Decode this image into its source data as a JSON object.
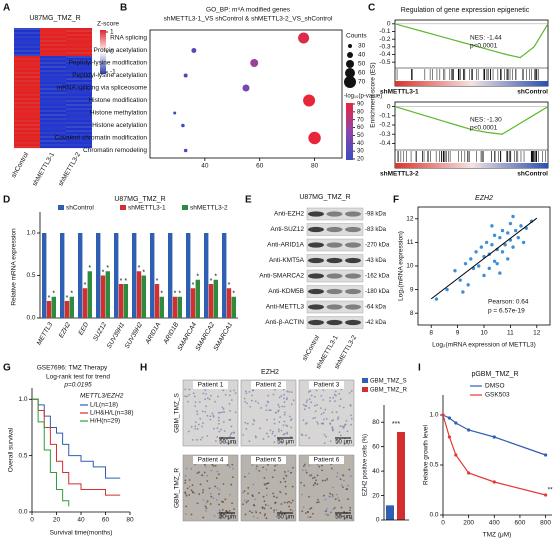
{
  "panel_labels": [
    "A",
    "B",
    "C",
    "D",
    "E",
    "F",
    "G",
    "H",
    "I"
  ],
  "a": {
    "title": "U87MG_TMZ_R",
    "legend_title": "Z-score",
    "legend_ticks": [
      1,
      0,
      -1
    ],
    "columns": [
      "shControl",
      "shMETTL3-1",
      "shMETTL3-2"
    ]
  },
  "b": {
    "title": "GO_BP: m⁶A modified genes",
    "subtitle": "shMETTL3-1_VS shControl & shMETTL3-2_VS_shControl",
    "categories": [
      "RNA splicing",
      "Protein acetylation",
      "Peptidyl-lysine modification",
      "Peptidyl-lysine acetylation",
      "mRNA splicing via spliceosome",
      "Histone modification",
      "Histone methylation",
      "Histone acetylation",
      "Covalent chromatin modification",
      "Chromatin remodeling"
    ],
    "x": [
      76,
      36,
      58,
      33,
      55,
      78,
      29,
      32,
      80,
      33
    ],
    "counts": [
      65,
      35,
      50,
      30,
      45,
      70,
      25,
      28,
      72,
      28
    ],
    "neglog_p": [
      85,
      30,
      60,
      25,
      45,
      90,
      20,
      22,
      90,
      25
    ],
    "xlim": [
      20,
      90
    ],
    "xticks": [
      40,
      60,
      80
    ],
    "size_title": "Counts",
    "size_ticks": [
      30,
      40,
      50,
      60,
      70
    ],
    "color_title": "-log₁₀(p-value)",
    "color_ticks": [
      90,
      80,
      70,
      60,
      50,
      40,
      30,
      20
    ]
  },
  "c": {
    "title": "Regulation of gene  expression epigenetic",
    "ylabel": "Enrichment score (ES)",
    "control_label": "shControl",
    "plots": [
      {
        "label": "shMETTL3-1",
        "nes": "NES: -1.44",
        "p": "p<0.0001",
        "es": [
          0,
          -0.05,
          -0.1,
          -0.15,
          -0.2,
          -0.25,
          -0.3,
          -0.35,
          -0.4,
          -0.44,
          -0.3,
          0
        ],
        "ylim": [
          -0.55,
          0.05
        ],
        "yticks": [
          0,
          -0.1,
          -0.2,
          -0.3,
          -0.4,
          -0.5
        ]
      },
      {
        "label": "shMETTL3-2",
        "nes": "NES: -1.30",
        "p": "p<0.0001",
        "es": [
          0,
          -0.05,
          -0.1,
          -0.15,
          -0.2,
          -0.25,
          -0.28,
          -0.3,
          -0.2,
          -0.1,
          0
        ],
        "ylim": [
          -0.45,
          0.05
        ],
        "yticks": [
          0,
          -0.1,
          -0.2,
          -0.3,
          -0.4
        ]
      }
    ]
  },
  "d": {
    "title": "U87MG_TMZ_R",
    "ylabel": "Relative mRNA expression",
    "sig_label": "*",
    "categories": [
      "METTL3",
      "EZH2",
      "EED",
      "SUZ12",
      "SUV39H1",
      "SUV39H2",
      "ARID1A",
      "ARID1B",
      "SMARCA4",
      "SMARCA2",
      "SMARCA1"
    ],
    "series": [
      {
        "name": "shControl",
        "color": "#2f5fb3",
        "values": [
          1,
          1,
          1,
          1,
          1,
          1,
          1,
          1,
          1,
          1,
          1
        ]
      },
      {
        "name": "shMETTL3-1",
        "color": "#d32f2f",
        "values": [
          0.2,
          0.2,
          0.35,
          0.5,
          0.4,
          0.55,
          0.4,
          0.25,
          0.35,
          0.4,
          0.35
        ]
      },
      {
        "name": "shMETTL3-2",
        "color": "#2e8b3e",
        "values": [
          0.25,
          0.25,
          0.55,
          0.55,
          0.4,
          0.5,
          0.25,
          0.25,
          0.45,
          0.45,
          0.25
        ]
      }
    ],
    "ylim": [
      0,
      1.2
    ],
    "yticks": [
      {
        "value": 0,
        "label": "0.0"
      },
      {
        "value": 0.5,
        "label": "0.5"
      },
      {
        "value": 1,
        "label": "1.0"
      }
    ]
  },
  "e": {
    "title": "U87MG_TMZ_R",
    "lanes": [
      "shControl",
      "shMETTL3-1",
      "shMETTL3-2"
    ],
    "rows": [
      {
        "name": "Anti-EZH2",
        "kda": "-98 kDa"
      },
      {
        "name": "Anti-SUZ12",
        "kda": "-83 kDa"
      },
      {
        "name": "Anti-ARID1A",
        "kda": "-270 kDa"
      },
      {
        "name": "Anti-KMT5A",
        "kda": "-43 kDa"
      },
      {
        "name": "Anti-SMARCA2",
        "kda": "-162 kDa"
      },
      {
        "name": "Anti-KDM5B",
        "kda": "-180 kDa"
      },
      {
        "name": "Anti-METTL3",
        "kda": "-64 kDa"
      },
      {
        "name": "Anti-β-ACTIN",
        "kda": "-42 kDa"
      }
    ]
  },
  "f": {
    "title": "EZH2",
    "xlabel": "Log₂(mRNA expression of METTL3)",
    "ylabel": "Log₂(mRNA expression)",
    "pearson": "Pearson: 0.64",
    "p": "p = 6.57e-19",
    "x": [
      8.2,
      8.6,
      8.9,
      9.1,
      9.3,
      9.4,
      9.5,
      9.6,
      9.7,
      9.8,
      9.9,
      10.0,
      10.0,
      10.1,
      10.2,
      10.2,
      10.3,
      10.4,
      10.4,
      10.5,
      10.5,
      10.6,
      10.7,
      10.7,
      10.8,
      10.9,
      10.9,
      11.0,
      11.0,
      11.1,
      11.2,
      11.3,
      11.4,
      11.5,
      11.6,
      11.8,
      9.2,
      10.3,
      10.6,
      11.1
    ],
    "y": [
      8.6,
      9.0,
      9.8,
      9.4,
      10.1,
      9.2,
      10.3,
      9.9,
      10.6,
      10.0,
      10.8,
      10.4,
      9.6,
      11.0,
      10.5,
      9.9,
      10.9,
      10.2,
      11.3,
      10.7,
      10.1,
      11.2,
      10.6,
      11.5,
      10.9,
      11.4,
      10.3,
      11.1,
      11.8,
      10.8,
      11.5,
      11.2,
      11.7,
      11.0,
      11.6,
      11.9,
      8.9,
      11.7,
      9.7,
      12.1
    ],
    "xlim": [
      7.5,
      12.5
    ],
    "xticks": [
      8,
      9,
      10,
      11,
      12
    ],
    "ylim": [
      7.5,
      12.5
    ],
    "yticks": [
      8,
      9,
      10,
      11,
      12
    ]
  },
  "g": {
    "title": "GSE7696: TMZ Therapy",
    "test": "Log-rank test for trend",
    "p": "p=0.0195",
    "legend_title": "METTL3/EZH2",
    "xlabel": "Survival time(months)",
    "ylabel": "Overall survival",
    "series": [
      {
        "name": "L/L(n=18)",
        "color": "#2f5fb3",
        "x": [
          0,
          5,
          10,
          15,
          20,
          25,
          30,
          40,
          50,
          60,
          72
        ],
        "values": [
          1,
          0.95,
          0.85,
          0.75,
          0.7,
          0.6,
          0.5,
          0.45,
          0.4,
          0.3,
          0.3
        ]
      },
      {
        "name": "L/H&H/L(n=38)",
        "color": "#d32f2f",
        "x": [
          0,
          5,
          10,
          15,
          20,
          25,
          30,
          40,
          50,
          60,
          72
        ],
        "values": [
          1,
          0.9,
          0.75,
          0.6,
          0.45,
          0.35,
          0.25,
          0.2,
          0.2,
          0.15,
          0.15
        ]
      },
      {
        "name": "H/H(n=29)",
        "color": "#2e9e3e",
        "x": [
          0,
          5,
          10,
          15,
          20,
          25,
          30
        ],
        "values": [
          1,
          0.8,
          0.55,
          0.35,
          0.2,
          0.1,
          0.05
        ]
      }
    ],
    "xlim": [
      0,
      80
    ],
    "xticks": [
      0,
      20,
      40,
      60,
      80
    ],
    "ylim": [
      0,
      1.1
    ],
    "yticks": [
      {
        "value": 0,
        "label": "0.0"
      },
      {
        "value": 0.5,
        "label": "0.5"
      },
      {
        "value": 1,
        "label": "1.0"
      }
    ]
  },
  "h": {
    "title": "EZH2",
    "patients": [
      "Patient 1",
      "Patient 2",
      "Patient 3",
      "Patient 4",
      "Patient 5",
      "Patient 6"
    ],
    "groups": [
      "GBM_TMZ_S",
      "GBM_TMZ_R"
    ],
    "scale": "50 μm",
    "ylabel": "EZH2 positive cells (%)",
    "sig_label": "***",
    "categories": [
      "GBM_TMZ_S",
      "GBM_TMZ_R"
    ],
    "colors": [
      "#2f5fb3",
      "#d32f2f"
    ],
    "values": [
      12,
      72
    ],
    "ylim": [
      0,
      90
    ],
    "yticks": [
      0,
      20,
      40,
      60,
      80
    ]
  },
  "i": {
    "title": "pGBM_TMZ_R",
    "xlabel": "TMZ (μM)",
    "ylabel": "Relative growth level",
    "sig_label": "**",
    "x": [
      0,
      50,
      100,
      200,
      400,
      800
    ],
    "series": [
      {
        "name": "DMSO",
        "color": "#2f5fb3",
        "values": [
          1.0,
          0.97,
          0.92,
          0.85,
          0.78,
          0.6
        ]
      },
      {
        "name": "GSK503",
        "color": "#e53935",
        "values": [
          1.0,
          0.78,
          0.6,
          0.42,
          0.33,
          0.2
        ]
      }
    ],
    "xlim": [
      0,
      850
    ],
    "xticks": [
      0,
      200,
      400,
      600,
      800
    ],
    "ylim": [
      0,
      1.2
    ],
    "yticks": [
      {
        "value": 0,
        "label": "0.0"
      },
      {
        "value": 0.5,
        "label": "0.5"
      },
      {
        "value": 1,
        "label": "1.0"
      }
    ]
  }
}
